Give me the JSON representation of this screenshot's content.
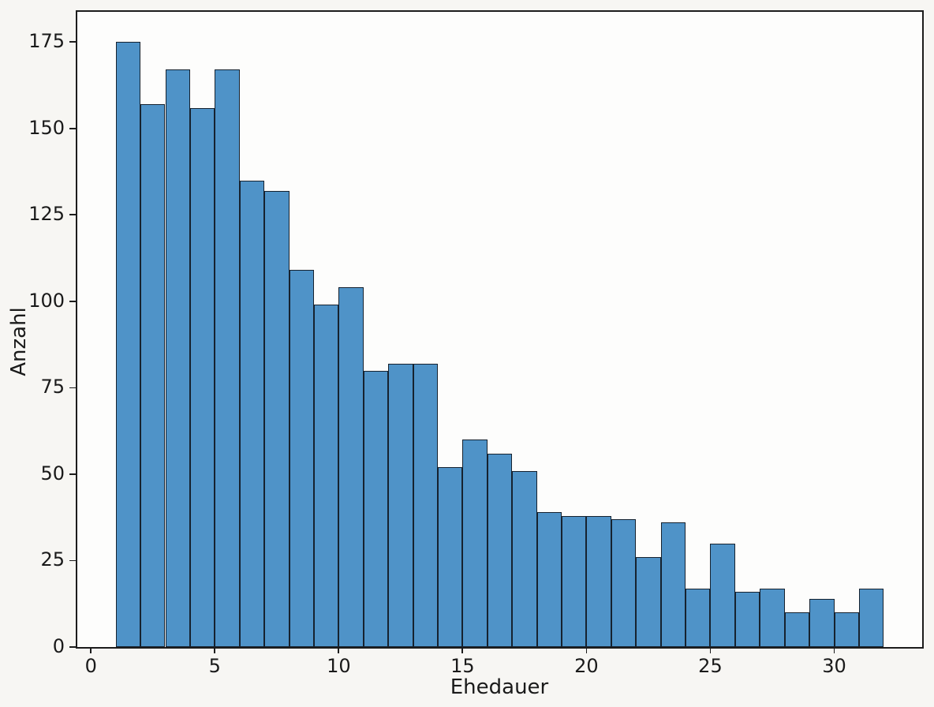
{
  "figure": {
    "background_color": "#f7f6f3",
    "plot_background_color": "#fdfdfc",
    "spine_color": "#1c1c1c"
  },
  "chart_data": {
    "type": "bar",
    "subtype": "histogram",
    "title": "",
    "xlabel": "Ehedauer",
    "ylabel": "Anzahl",
    "bin_start": 1,
    "bin_width": 1,
    "bin_edges": [
      1,
      2,
      3,
      4,
      5,
      6,
      7,
      8,
      9,
      10,
      11,
      12,
      13,
      14,
      15,
      16,
      17,
      18,
      19,
      20,
      21,
      22,
      23,
      24,
      25,
      26,
      27,
      28,
      29,
      30,
      31,
      32
    ],
    "values": [
      175,
      157,
      167,
      156,
      167,
      135,
      132,
      109,
      99,
      104,
      80,
      82,
      82,
      52,
      60,
      56,
      51,
      39,
      38,
      38,
      37,
      26,
      36,
      17,
      30,
      16,
      17,
      10,
      14,
      10,
      17
    ],
    "xticks": [
      0,
      5,
      10,
      15,
      20,
      25,
      30
    ],
    "yticks": [
      0,
      25,
      50,
      75,
      100,
      125,
      150,
      175
    ],
    "xlim": [
      -0.55,
      33.55
    ],
    "ylim": [
      0,
      183.75
    ],
    "grid": false,
    "legend_position": "none",
    "bar_fill_color": "#4f93c8",
    "bar_edge_color": "#16222f"
  }
}
